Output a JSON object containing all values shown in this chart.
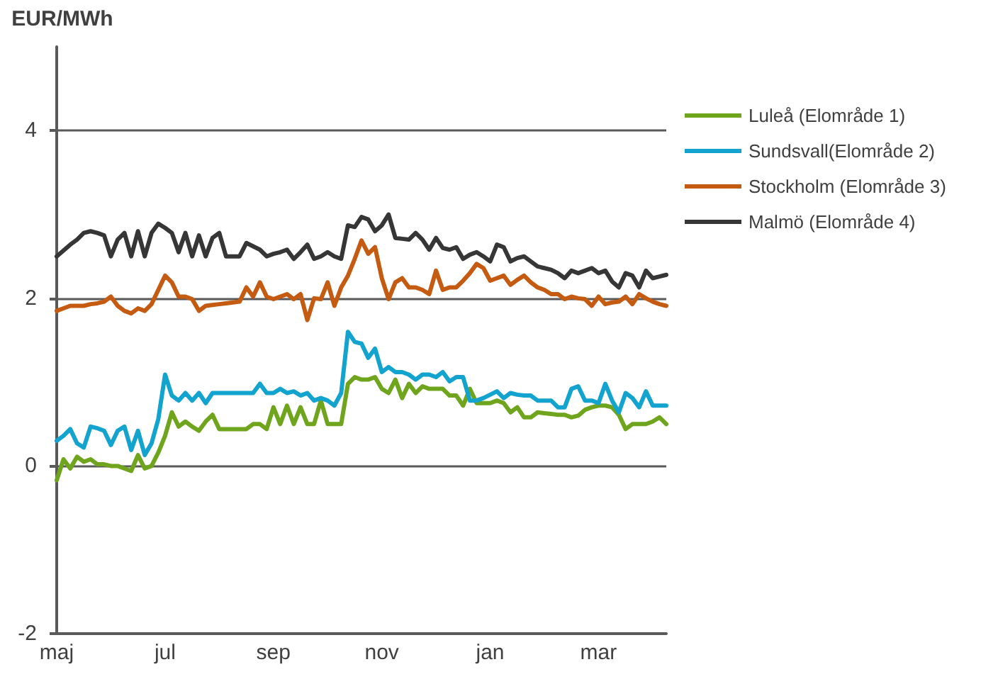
{
  "chart_data": {
    "type": "line",
    "ylabel": "EUR/MWh",
    "categories": [
      "maj",
      null,
      null,
      null,
      null,
      null,
      null,
      null,
      null,
      null,
      null,
      null,
      null,
      null,
      null,
      null,
      "jul",
      null,
      null,
      null,
      null,
      null,
      null,
      null,
      null,
      null,
      null,
      null,
      null,
      null,
      null,
      null,
      "sep",
      null,
      null,
      null,
      null,
      null,
      null,
      null,
      null,
      null,
      null,
      null,
      null,
      null,
      null,
      null,
      "nov",
      null,
      null,
      null,
      null,
      null,
      null,
      null,
      null,
      null,
      null,
      null,
      null,
      null,
      null,
      null,
      "jan",
      null,
      null,
      null,
      null,
      null,
      null,
      null,
      null,
      null,
      null,
      null,
      null,
      null,
      null,
      null,
      "mar",
      null,
      null,
      null,
      null,
      null,
      null,
      null,
      null,
      null,
      null
    ],
    "ylim": [
      -2,
      5
    ],
    "yticks": [
      -2,
      0,
      2,
      4
    ],
    "grid": "y",
    "legend": "right",
    "marker": "none",
    "line_style": "solid",
    "series": [
      {
        "name": "Luleå (Elområde 1)",
        "color": "#6fa51c",
        "values": [
          -0.17,
          0.08,
          -0.03,
          0.11,
          0.05,
          0.08,
          0.02,
          0.02,
          0,
          0,
          -0.03,
          -0.06,
          0.13,
          -0.03,
          0,
          0.16,
          0.36,
          0.64,
          0.47,
          0.53,
          0.47,
          0.42,
          0.53,
          0.61,
          0.44,
          0.44,
          0.44,
          0.44,
          0.44,
          0.5,
          0.5,
          0.44,
          0.7,
          0.5,
          0.72,
          0.5,
          0.7,
          0.5,
          0.5,
          0.78,
          0.5,
          0.5,
          0.5,
          0.98,
          1.06,
          1.03,
          1.03,
          1.06,
          0.92,
          0.87,
          1.03,
          0.81,
          0.98,
          0.87,
          0.95,
          0.92,
          0.92,
          0.92,
          0.84,
          0.84,
          0.72,
          0.92,
          0.75,
          0.75,
          0.75,
          0.78,
          0.75,
          0.64,
          0.7,
          0.58,
          0.58,
          0.64,
          0.63,
          0.62,
          0.61,
          0.61,
          0.58,
          0.6,
          0.67,
          0.7,
          0.72,
          0.72,
          0.7,
          0.61,
          0.44,
          0.5,
          0.5,
          0.5,
          0.53,
          0.58,
          0.5
        ]
      },
      {
        "name": "Sundsvall(Elområde 2)",
        "color": "#12a3cf",
        "values": [
          0.3,
          0.36,
          0.44,
          0.27,
          0.22,
          0.47,
          0.45,
          0.42,
          0.25,
          0.42,
          0.47,
          0.19,
          0.42,
          0.13,
          0.27,
          0.56,
          1.09,
          0.84,
          0.78,
          0.87,
          0.78,
          0.87,
          0.75,
          0.87,
          0.87,
          0.87,
          0.87,
          0.87,
          0.87,
          0.87,
          0.98,
          0.87,
          0.87,
          0.92,
          0.87,
          0.89,
          0.84,
          0.87,
          0.78,
          0.81,
          0.78,
          0.72,
          0.87,
          1.6,
          1.48,
          1.46,
          1.29,
          1.4,
          1.12,
          1.18,
          1.12,
          1.12,
          1.09,
          1.03,
          1.09,
          1.09,
          1.06,
          1.12,
          1.01,
          1.06,
          1.06,
          0.78,
          0.78,
          0.81,
          0.85,
          0.89,
          0.81,
          0.87,
          0.85,
          0.84,
          0.84,
          0.78,
          0.78,
          0.78,
          0.7,
          0.7,
          0.92,
          0.95,
          0.78,
          0.78,
          0.75,
          0.98,
          0.78,
          0.64,
          0.87,
          0.81,
          0.7,
          0.89,
          0.72,
          0.72,
          0.72
        ]
      },
      {
        "name": "Stockholm (Elområde 3)",
        "color": "#c55a11",
        "values": [
          1.85,
          1.88,
          1.91,
          1.91,
          1.91,
          1.93,
          1.94,
          1.96,
          2.02,
          1.91,
          1.85,
          1.82,
          1.88,
          1.85,
          1.93,
          2.1,
          2.27,
          2.19,
          2.02,
          2.02,
          1.99,
          1.85,
          1.91,
          1.92,
          1.93,
          1.94,
          1.95,
          1.96,
          2.13,
          2.02,
          2.19,
          2.02,
          1.99,
          2.02,
          2.05,
          1.99,
          2.05,
          1.74,
          2,
          1.99,
          2.19,
          1.91,
          2.13,
          2.27,
          2.47,
          2.69,
          2.53,
          2.61,
          2.24,
          1.99,
          2.19,
          2.24,
          2.13,
          2.13,
          2.1,
          2.05,
          2.33,
          2.1,
          2.13,
          2.13,
          2.21,
          2.3,
          2.41,
          2.36,
          2.21,
          2.24,
          2.27,
          2.16,
          2.22,
          2.27,
          2.19,
          2.13,
          2.1,
          2.05,
          2.05,
          1.99,
          2.02,
          2,
          1.99,
          1.91,
          2.02,
          1.93,
          1.95,
          1.96,
          2.02,
          1.93,
          2.05,
          2,
          1.96,
          1.93,
          1.91
        ]
      },
      {
        "name": "Malmö (Elområde 4)",
        "color": "#363636",
        "values": [
          2.5,
          2.57,
          2.64,
          2.7,
          2.78,
          2.8,
          2.78,
          2.75,
          2.5,
          2.7,
          2.78,
          2.5,
          2.8,
          2.5,
          2.78,
          2.89,
          2.84,
          2.78,
          2.55,
          2.78,
          2.5,
          2.75,
          2.5,
          2.72,
          2.78,
          2.5,
          2.5,
          2.5,
          2.66,
          2.62,
          2.58,
          2.5,
          2.53,
          2.55,
          2.58,
          2.47,
          2.55,
          2.64,
          2.47,
          2.5,
          2.55,
          2.5,
          2.47,
          2.87,
          2.85,
          2.97,
          2.94,
          2.8,
          2.87,
          3,
          2.72,
          2.71,
          2.7,
          2.78,
          2.7,
          2.58,
          2.72,
          2.6,
          2.58,
          2.61,
          2.47,
          2.52,
          2.55,
          2.5,
          2.44,
          2.64,
          2.61,
          2.44,
          2.48,
          2.5,
          2.44,
          2.38,
          2.36,
          2.34,
          2.3,
          2.24,
          2.33,
          2.3,
          2.33,
          2.36,
          2.3,
          2.33,
          2.2,
          2.13,
          2.3,
          2.27,
          2.13,
          2.33,
          2.24,
          2.26,
          2.28
        ]
      }
    ]
  }
}
